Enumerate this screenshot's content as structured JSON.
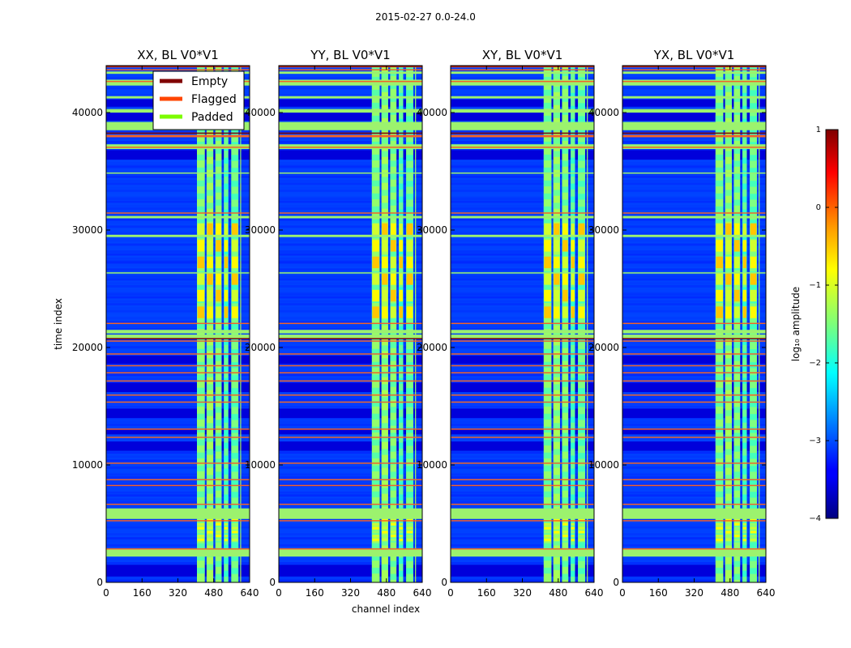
{
  "chart_data": {
    "type": "heatmap",
    "suptitle": "2015-02-27 0.0-24.0",
    "xlabel": "channel index",
    "ylabel": "time index",
    "xlim": [
      0,
      640
    ],
    "ylim": [
      0,
      44000
    ],
    "xticks": [
      0,
      160,
      320,
      480,
      640
    ],
    "yticks": [
      0,
      10000,
      20000,
      30000,
      40000
    ],
    "panels": [
      {
        "title": "XX, BL V0*V1"
      },
      {
        "title": "YY, BL V0*V1"
      },
      {
        "title": "XY, BL V0*V1"
      },
      {
        "title": "YX, BL V0*V1"
      }
    ],
    "colorbar": {
      "label": "log₁₀ amplitude",
      "range": [
        -4,
        1
      ],
      "ticks": [
        "1",
        "0",
        "−1",
        "−2",
        "−3",
        "−4"
      ],
      "colormap": "jet"
    },
    "legend": {
      "location": "upper left of first panel",
      "entries": [
        {
          "label": "Empty",
          "color": "#800000"
        },
        {
          "label": "Flagged",
          "color": "#ff4500"
        },
        {
          "label": "Padded",
          "color": "#7cfc00"
        }
      ]
    },
    "signal_columns": [
      {
        "from": 405,
        "to": 440,
        "level": -1.4
      },
      {
        "from": 448,
        "to": 478,
        "level": -1.3
      },
      {
        "from": 487,
        "to": 515,
        "level": -1.4
      },
      {
        "from": 525,
        "to": 545,
        "level": -1.6
      },
      {
        "from": 558,
        "to": 590,
        "level": -1.5
      },
      {
        "from": 598,
        "to": 602,
        "level": -1.2
      }
    ],
    "strong_regions": [
      {
        "t_from": 22500,
        "t_to": 31000,
        "level": -0.6
      },
      {
        "t_from": 3500,
        "t_to": 5500,
        "level": -0.9
      }
    ],
    "padded_rows": [
      [
        2200,
        2900
      ],
      [
        5400,
        6300
      ],
      [
        20800,
        21100
      ],
      [
        21200,
        21500
      ],
      [
        26300,
        26400
      ],
      [
        29400,
        29600
      ],
      [
        31000,
        31200
      ],
      [
        34800,
        34900
      ],
      [
        36900,
        37300
      ],
      [
        38500,
        39200
      ],
      [
        40000,
        40300
      ],
      [
        41200,
        41400
      ],
      [
        42300,
        42800
      ],
      [
        43300,
        43500
      ]
    ],
    "flagged_rows": [
      [
        2800,
        2900
      ],
      [
        5200,
        5300
      ],
      [
        6600,
        6700
      ],
      [
        8200,
        8300
      ],
      [
        8700,
        8800
      ],
      [
        10100,
        10200
      ],
      [
        12300,
        12400
      ],
      [
        13000,
        13100
      ],
      [
        15300,
        15400
      ],
      [
        15900,
        16000
      ],
      [
        17100,
        17200
      ],
      [
        17800,
        17900
      ],
      [
        18400,
        18500
      ],
      [
        19400,
        19500
      ],
      [
        20500,
        20600
      ],
      [
        22000,
        22100
      ],
      [
        31400,
        31500
      ],
      [
        37000,
        37100
      ],
      [
        37900,
        38100
      ],
      [
        42600,
        42700
      ],
      [
        43600,
        43700
      ],
      [
        43850,
        43950
      ]
    ],
    "empty_rows": [
      [
        20700,
        20800
      ],
      [
        38200,
        38300
      ],
      [
        43950,
        44000
      ]
    ],
    "dark_bands": [
      [
        500,
        1500
      ],
      [
        11200,
        12000
      ],
      [
        12600,
        13000
      ],
      [
        14000,
        14800
      ],
      [
        16200,
        17000
      ],
      [
        18600,
        19300
      ],
      [
        36000,
        36800
      ],
      [
        39300,
        40000
      ],
      [
        40500,
        41100
      ]
    ],
    "xx_legend": true
  }
}
